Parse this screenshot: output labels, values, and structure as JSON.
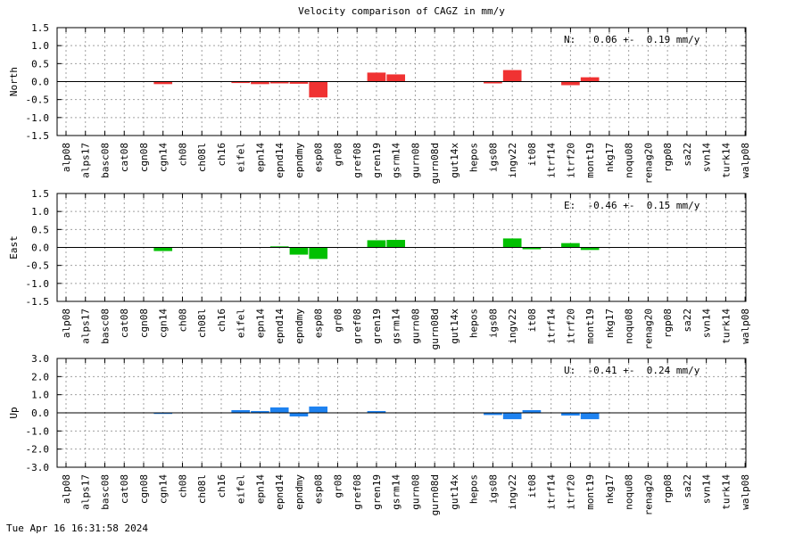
{
  "title": "Velocity comparison of CAGZ in mm/y",
  "footer": "Tue Apr 16 16:31:58 2024",
  "chart_data": [
    {
      "type": "bar",
      "component": "north",
      "ylabel": "North",
      "color": "#f03232",
      "annotation": "N:   0.06 +-  0.19 mm/y",
      "ylim": [
        -1.5,
        1.5
      ],
      "yticks": [
        "1.5",
        "1.0",
        "0.5",
        "0.0",
        "-0.5",
        "-1.0",
        "-1.5"
      ],
      "grid": true,
      "categories": [
        "alp08",
        "alps17",
        "basc08",
        "cat08",
        "cgn08",
        "cgn14",
        "ch08",
        "ch08l",
        "ch16",
        "eifel",
        "epn14",
        "epnd14",
        "epndmy",
        "esp08",
        "gr08",
        "gref08",
        "gren19",
        "gsrm14",
        "gurn08",
        "gurn08d",
        "gut14x",
        "hepos",
        "igs08",
        "ingv22",
        "it08",
        "itrf14",
        "itrf20",
        "mont19",
        "nkg17",
        "noqu08",
        "renag20",
        "rgp08",
        "sa22",
        "svn14",
        "turk14",
        "walp08"
      ],
      "values": [
        0,
        0,
        0,
        0,
        0,
        -0.07,
        0,
        0,
        0,
        -0.04,
        -0.07,
        -0.05,
        -0.06,
        -0.44,
        0,
        0,
        0.25,
        0.2,
        0,
        0,
        0,
        0,
        -0.05,
        0.32,
        0,
        0,
        -0.1,
        0.12,
        0,
        0,
        0,
        0,
        0,
        0,
        0,
        0
      ]
    },
    {
      "type": "bar",
      "component": "east",
      "ylabel": "East",
      "color": "#00c000",
      "annotation": "E:  -0.46 +-  0.15 mm/y",
      "ylim": [
        -1.5,
        1.5
      ],
      "yticks": [
        "1.5",
        "1.0",
        "0.5",
        "0.0",
        "-0.5",
        "-1.0",
        "-1.5"
      ],
      "grid": true,
      "categories": [
        "alp08",
        "alps17",
        "basc08",
        "cat08",
        "cgn08",
        "cgn14",
        "ch08",
        "ch08l",
        "ch16",
        "eifel",
        "epn14",
        "epnd14",
        "epndmy",
        "esp08",
        "gr08",
        "gref08",
        "gren19",
        "gsrm14",
        "gurn08",
        "gurn08d",
        "gut14x",
        "hepos",
        "igs08",
        "ingv22",
        "it08",
        "itrf14",
        "itrf20",
        "mont19",
        "nkg17",
        "noqu08",
        "renag20",
        "rgp08",
        "sa22",
        "svn14",
        "turk14",
        "walp08"
      ],
      "values": [
        0,
        0,
        0,
        0,
        0,
        -0.1,
        0,
        0,
        0,
        0,
        0,
        0.03,
        -0.2,
        -0.32,
        0,
        0,
        0.2,
        0.21,
        0,
        0,
        0,
        0,
        0,
        0.25,
        -0.05,
        0,
        0.12,
        -0.07,
        0,
        0,
        0,
        0,
        0,
        0,
        0,
        0
      ]
    },
    {
      "type": "bar",
      "component": "up",
      "ylabel": "Up",
      "color": "#1e82f0",
      "annotation": "U:  -0.41 +-  0.24 mm/y",
      "ylim": [
        -3.0,
        3.0
      ],
      "yticks": [
        "3.0",
        "2.0",
        "1.0",
        "0.0",
        "-1.0",
        "-2.0",
        "-3.0"
      ],
      "grid": true,
      "categories": [
        "alp08",
        "alps17",
        "basc08",
        "cat08",
        "cgn08",
        "cgn14",
        "ch08",
        "ch08l",
        "ch16",
        "eifel",
        "epn14",
        "epnd14",
        "epndmy",
        "esp08",
        "gr08",
        "gref08",
        "gren19",
        "gsrm14",
        "gurn08",
        "gurn08d",
        "gut14x",
        "hepos",
        "igs08",
        "ingv22",
        "it08",
        "itrf14",
        "itrf20",
        "mont19",
        "nkg17",
        "noqu08",
        "renag20",
        "rgp08",
        "sa22",
        "svn14",
        "turk14",
        "walp08"
      ],
      "values": [
        0,
        0,
        0,
        0,
        0,
        -0.06,
        0,
        0,
        0,
        0.15,
        0.1,
        0.3,
        -0.2,
        0.35,
        0,
        0,
        0.1,
        0,
        0,
        0,
        0,
        0,
        -0.12,
        -0.35,
        0.15,
        0,
        -0.15,
        -0.35,
        0,
        0,
        0,
        0,
        0,
        0,
        0,
        0
      ]
    }
  ]
}
